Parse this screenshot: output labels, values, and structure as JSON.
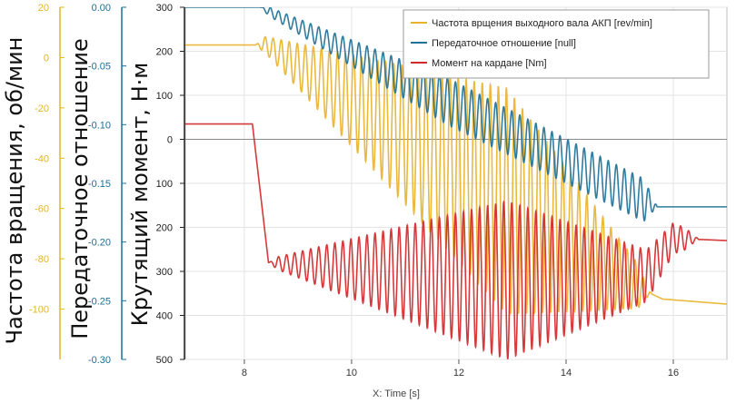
{
  "chart_data": {
    "type": "line",
    "xlabel": "X: Time [s]",
    "x_range": [
      6.9,
      17.0
    ],
    "x_ticks": [
      8,
      10,
      12,
      14,
      16
    ],
    "grid": true,
    "legend_position": "top-right",
    "axes": [
      {
        "id": "torque",
        "label": "Крутящий момент, Н·м",
        "range": [
          -500,
          300
        ],
        "ticks": [
          300,
          200,
          100,
          0,
          -100,
          -200,
          -300,
          -400,
          -500
        ],
        "tick_labels": [
          "300",
          "200",
          "100",
          "0",
          "100",
          "200",
          "300",
          "400",
          "500"
        ],
        "color": "#222222"
      },
      {
        "id": "ratio",
        "label": "Передаточное отношение",
        "range": [
          -0.3,
          0.0
        ],
        "ticks": [
          0.0,
          -0.05,
          -0.1,
          -0.15,
          -0.2,
          -0.25,
          -0.3
        ],
        "tick_labels": [
          "0.00",
          "-0.05",
          "-0.10",
          "-0.15",
          "-0.20",
          "-0.25",
          "-0.30"
        ],
        "color": "#1d6f93"
      },
      {
        "id": "speed",
        "label": "Частота вращения, об/мин",
        "range": [
          -120,
          20
        ],
        "ticks": [
          20,
          0,
          -20,
          -40,
          -60,
          -80,
          -100
        ],
        "tick_labels": [
          "20",
          "0",
          "-20",
          "-40",
          "-60",
          "-80",
          "-100"
        ],
        "color": "#e3b52a"
      }
    ],
    "series": [
      {
        "name": "Частота врщения выходного вала АКП [rev/min]",
        "axis": "speed",
        "color": "#e8b32c",
        "keypoints": [
          [
            6.9,
            5.0
          ],
          [
            8.4,
            5.0
          ],
          [
            15.5,
            -93.0
          ],
          [
            15.8,
            -96.0
          ],
          [
            17.0,
            -98.0
          ]
        ],
        "oscillation": {
          "start": 8.2,
          "end": 15.6,
          "period": 0.15,
          "amplitude_start": 1.5,
          "amplitude_peak": 45.0,
          "peak_at": 12.9,
          "amplitude_end": 5.0
        }
      },
      {
        "name": "Передаточное отношение [null]",
        "axis": "ratio",
        "color": "#1f7196",
        "keypoints": [
          [
            6.9,
            0.0
          ],
          [
            8.3,
            0.0
          ],
          [
            15.7,
            -0.17
          ],
          [
            17.0,
            -0.17
          ]
        ],
        "oscillation": {
          "start": 8.3,
          "end": 15.7,
          "period": 0.15,
          "amplitude_start": 0.003,
          "amplitude_peak": 0.02,
          "peak_at": 11.8,
          "amplitude_end": 0.018
        }
      },
      {
        "name": "Момент на кардане [Nm]",
        "axis": "torque",
        "color": "#d3282a",
        "keypoints": [
          [
            6.9,
            35
          ],
          [
            8.15,
            35
          ],
          [
            8.45,
            -280
          ],
          [
            12.9,
            -320
          ],
          [
            15.5,
            -310
          ],
          [
            16.0,
            -225
          ],
          [
            17.0,
            -230
          ]
        ],
        "oscillation": {
          "start": 8.45,
          "end": 16.5,
          "period": 0.15,
          "amplitude_start": 8.0,
          "amplitude_peak": 180.0,
          "peak_at": 12.9,
          "amplitude_end": 12.0
        }
      }
    ]
  }
}
